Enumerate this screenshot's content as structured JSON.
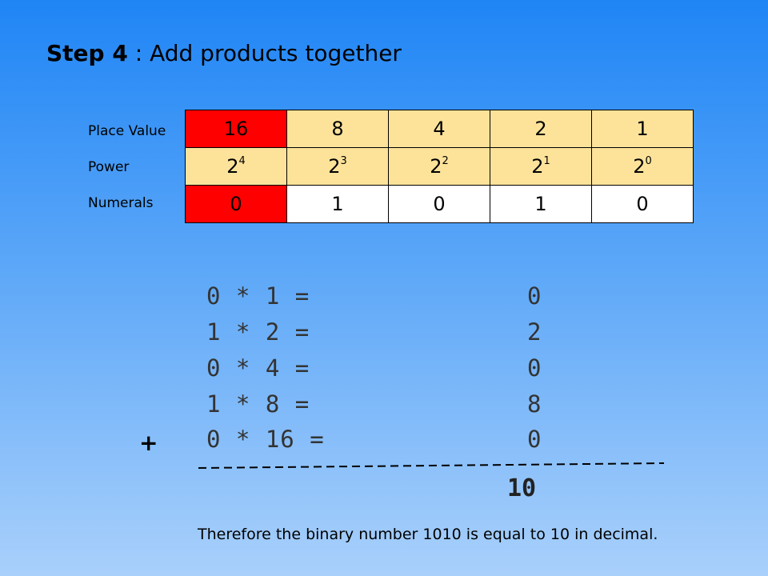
{
  "title": {
    "step": "Step 4",
    "rest": " : Add products together"
  },
  "row_labels": {
    "place_value": "Place Value",
    "power": "Power",
    "numerals": "Numerals"
  },
  "place_values": [
    "16",
    "8",
    "4",
    "2",
    "1"
  ],
  "powers": [
    {
      "base": "2",
      "exp": "4"
    },
    {
      "base": "2",
      "exp": "3"
    },
    {
      "base": "2",
      "exp": "2"
    },
    {
      "base": "2",
      "exp": "1"
    },
    {
      "base": "2",
      "exp": "0"
    }
  ],
  "numerals": [
    "0",
    "1",
    "0",
    "1",
    "0"
  ],
  "equations": [
    {
      "expr": "0 * 1 =",
      "result": "0"
    },
    {
      "expr": "1 * 2 =",
      "result": "2"
    },
    {
      "expr": "0 * 4 =",
      "result": "0"
    },
    {
      "expr": "1 * 8 =",
      "result": "8"
    },
    {
      "expr": "0 * 16 =",
      "result": "0"
    }
  ],
  "plus_sign": "+",
  "total": "10",
  "conclusion": "Therefore the binary number 1010 is equal to 10 in decimal.",
  "colors": {
    "highlight": "#ff0000",
    "header": "#fde39a",
    "cell": "#ffffff"
  }
}
